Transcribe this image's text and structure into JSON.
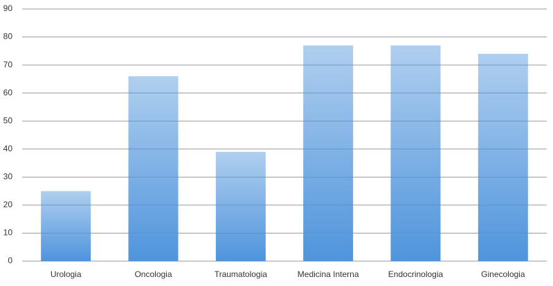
{
  "chart_data": {
    "type": "bar",
    "categories": [
      "Urologia",
      "Oncologia",
      "Traumatologia",
      "Medicina Interna",
      "Endocrinologia",
      "Ginecologia"
    ],
    "values": [
      25,
      66,
      39,
      77,
      77,
      74
    ],
    "color": "#4f94dc",
    "ylim": [
      0,
      90
    ],
    "yticks": [
      0,
      10,
      20,
      30,
      40,
      50,
      60,
      70,
      80,
      90
    ],
    "grid": true
  }
}
